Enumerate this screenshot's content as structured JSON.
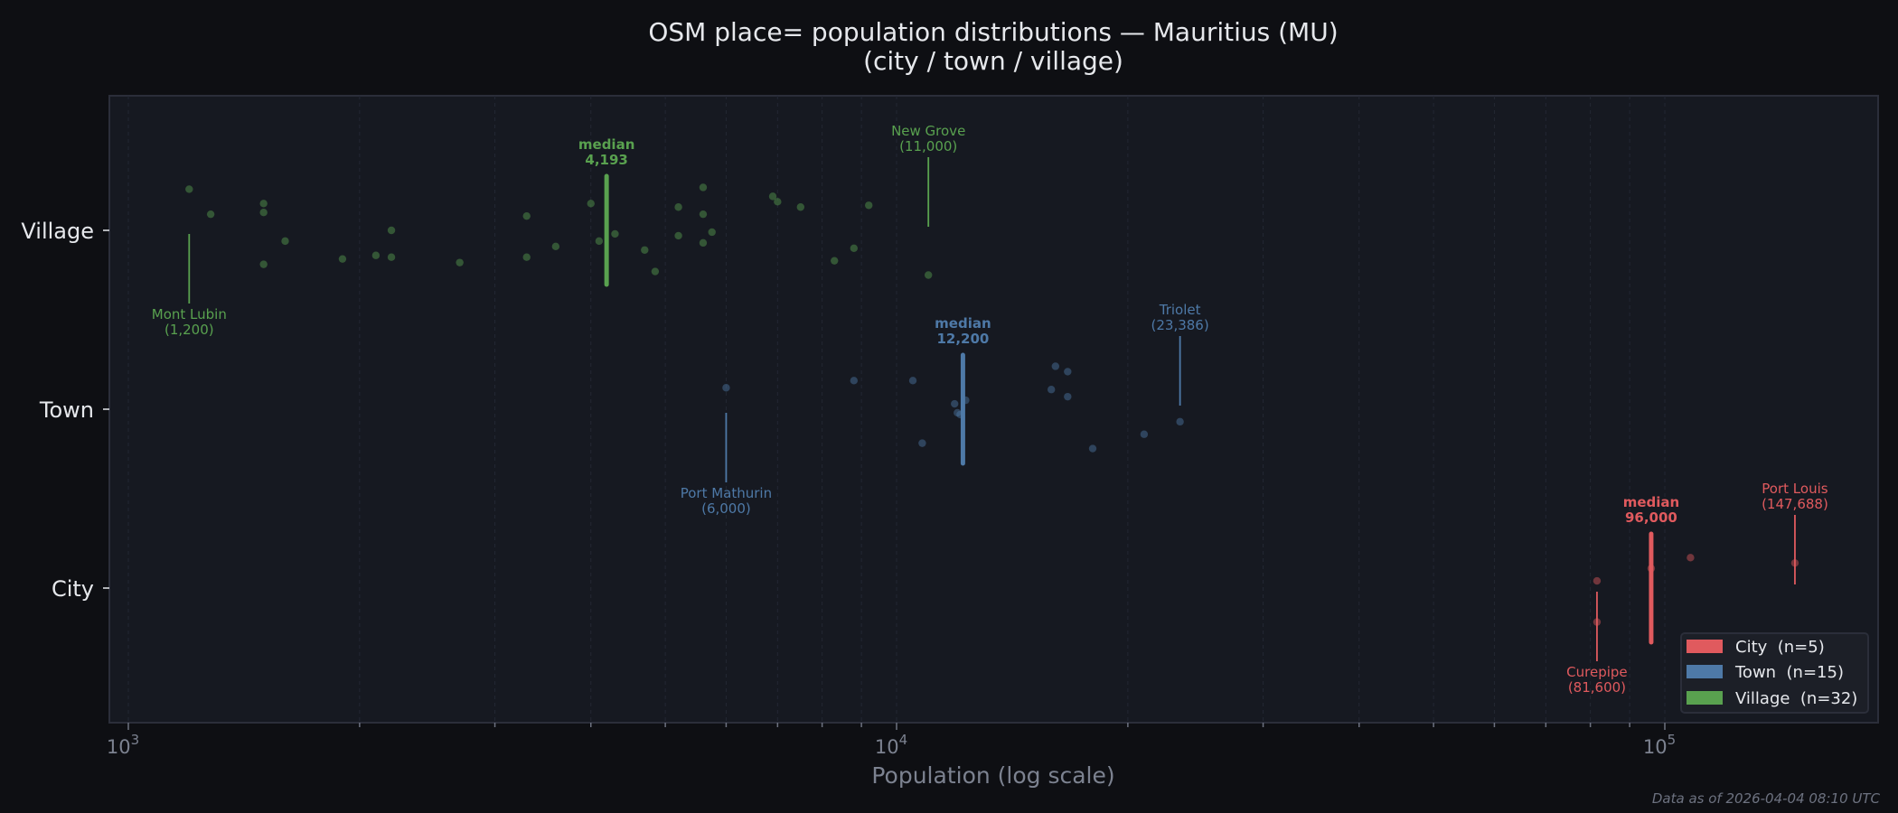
{
  "title_line1": "OSM place= population distributions — Mauritius (MU)",
  "title_line2": "(city / town / village)",
  "footnote": "Data as of 2026-04-04 08:10 UTC",
  "colors": {
    "background": "#0e0f13",
    "axes_bg": "#161921",
    "axes_border": "#2b2e3a",
    "city": "#e05a5e",
    "town": "#4e79a7",
    "village": "#59a14f"
  },
  "chart_data": {
    "type": "scatter",
    "title": "OSM place= population distributions — Mauritius (MU) (city / town / village)",
    "xlabel": "Population (log scale)",
    "ylabel": "",
    "xscale": "log",
    "xlim": [
      950,
      190000
    ],
    "xticks": [
      {
        "value": 1000,
        "label": "10^3"
      },
      {
        "value": 10000,
        "label": "10^4"
      },
      {
        "value": 100000,
        "label": "10^5"
      }
    ],
    "categories": [
      "Village",
      "Town",
      "City"
    ],
    "grid": "vertical dashed, minor ticks",
    "legend_position": "lower right",
    "legend": [
      {
        "label": "City  (n=5)",
        "key": "city"
      },
      {
        "label": "Town  (n=15)",
        "key": "town"
      },
      {
        "label": "Village  (n=32)",
        "key": "village"
      }
    ],
    "series": [
      {
        "name": "City",
        "key": "city",
        "n": 5,
        "median": 96000,
        "median_label": "median\n96,000",
        "points": [
          [
            81600,
            0.04
          ],
          [
            81600,
            -0.19
          ],
          [
            96000,
            0.11
          ],
          [
            108000,
            0.17
          ],
          [
            147688,
            0.14
          ]
        ],
        "annotations": [
          {
            "name": "Curepipe",
            "value_label": "(81,600)",
            "value": 81600,
            "position": "below"
          },
          {
            "name": "Port Louis",
            "value_label": "(147,688)",
            "value": 147688,
            "position": "above"
          }
        ]
      },
      {
        "name": "Town",
        "key": "town",
        "n": 15,
        "median": 12200,
        "median_label": "median\n12,200",
        "points": [
          [
            6000,
            0.12
          ],
          [
            8800,
            0.16
          ],
          [
            10500,
            0.16
          ],
          [
            10800,
            -0.19
          ],
          [
            11900,
            0.03
          ],
          [
            12000,
            -0.02
          ],
          [
            12100,
            -0.03
          ],
          [
            12300,
            0.05
          ],
          [
            15900,
            0.11
          ],
          [
            16100,
            0.24
          ],
          [
            16700,
            0.21
          ],
          [
            16700,
            0.07
          ],
          [
            18000,
            -0.22
          ],
          [
            21000,
            -0.14
          ],
          [
            23386,
            -0.07
          ]
        ],
        "annotations": [
          {
            "name": "Port Mathurin",
            "value_label": "(6,000)",
            "value": 6000,
            "position": "below"
          },
          {
            "name": "Triolet",
            "value_label": "(23,386)",
            "value": 23386,
            "position": "above"
          }
        ]
      },
      {
        "name": "Village",
        "key": "village",
        "n": 32,
        "median": 4193,
        "median_label": "median\n4,193",
        "points": [
          [
            1200,
            0.23
          ],
          [
            1280,
            0.09
          ],
          [
            1500,
            0.15
          ],
          [
            1500,
            0.1
          ],
          [
            1500,
            -0.19
          ],
          [
            1600,
            -0.06
          ],
          [
            1900,
            -0.16
          ],
          [
            2100,
            -0.14
          ],
          [
            2200,
            0.0
          ],
          [
            2200,
            -0.15
          ],
          [
            2700,
            -0.18
          ],
          [
            3300,
            0.08
          ],
          [
            3300,
            -0.15
          ],
          [
            3600,
            -0.09
          ],
          [
            4000,
            0.15
          ],
          [
            4100,
            -0.06
          ],
          [
            4300,
            -0.02
          ],
          [
            4700,
            -0.11
          ],
          [
            4850,
            -0.23
          ],
          [
            5200,
            0.13
          ],
          [
            5200,
            -0.03
          ],
          [
            5600,
            0.24
          ],
          [
            5600,
            0.09
          ],
          [
            5600,
            -0.07
          ],
          [
            5750,
            -0.01
          ],
          [
            6900,
            0.19
          ],
          [
            7000,
            0.16
          ],
          [
            7500,
            0.13
          ],
          [
            8300,
            -0.17
          ],
          [
            8800,
            -0.1
          ],
          [
            9200,
            0.14
          ],
          [
            11000,
            -0.25
          ]
        ],
        "annotations": [
          {
            "name": "Mont Lubin",
            "value_label": "(1,200)",
            "value": 1200,
            "position": "below"
          },
          {
            "name": "New Grove",
            "value_label": "(11,000)",
            "value": 11000,
            "position": "above"
          }
        ]
      }
    ]
  },
  "legend": {
    "items": [
      {
        "label": "City  (n=5)"
      },
      {
        "label": "Town  (n=15)"
      },
      {
        "label": "Village  (n=32)"
      }
    ]
  }
}
